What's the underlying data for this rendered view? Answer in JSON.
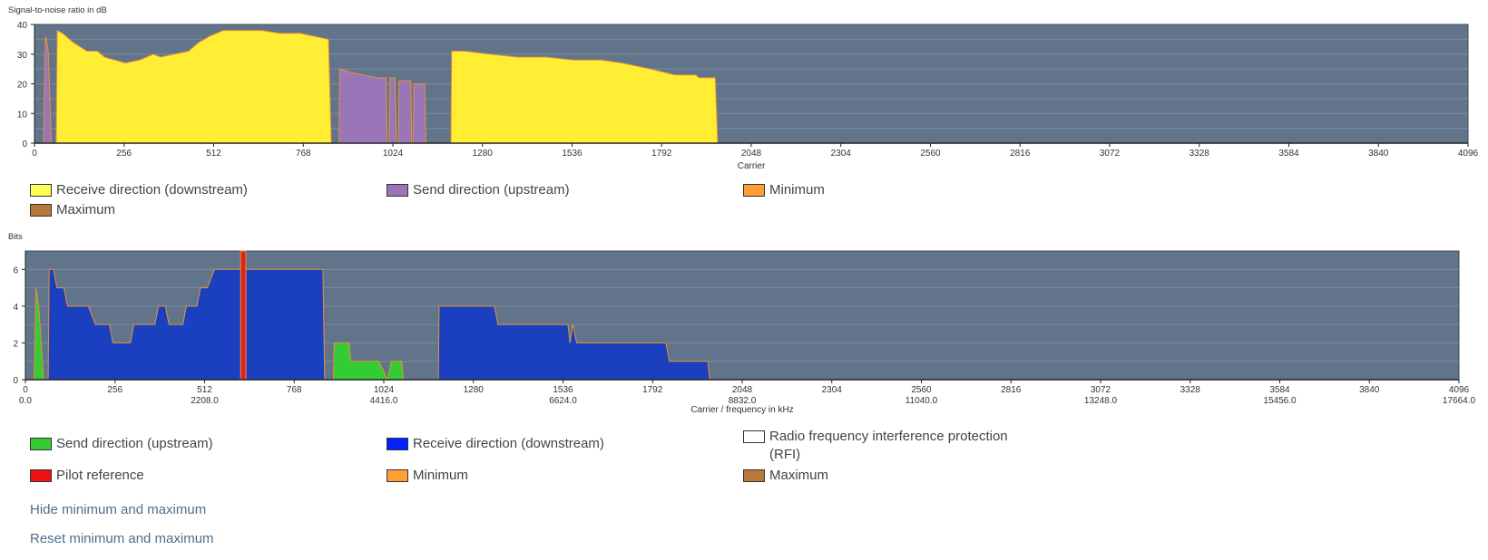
{
  "chart_data": [
    {
      "type": "area",
      "ylabel": "Signal-to-noise ratio in dB",
      "xlabel": "Carrier",
      "xlim": [
        0,
        4096
      ],
      "ylim": [
        0,
        40
      ],
      "x_ticks": [
        0,
        256,
        512,
        768,
        1024,
        1280,
        1536,
        1792,
        2048,
        2304,
        2560,
        2816,
        3072,
        3328,
        3584,
        3840,
        4096
      ],
      "y_ticks": [
        0,
        10,
        20,
        30,
        40
      ],
      "series": [
        {
          "name": "Receive direction (downstream)",
          "color": "#ffee33",
          "points": [
            [
              62,
              0
            ],
            [
              65,
              38
            ],
            [
              80,
              37
            ],
            [
              110,
              34
            ],
            [
              150,
              31
            ],
            [
              180,
              31
            ],
            [
              200,
              29
            ],
            [
              230,
              28
            ],
            [
              260,
              27
            ],
            [
              300,
              28
            ],
            [
              340,
              30
            ],
            [
              360,
              29
            ],
            [
              400,
              30
            ],
            [
              440,
              31
            ],
            [
              470,
              34
            ],
            [
              500,
              36
            ],
            [
              540,
              38
            ],
            [
              600,
              38
            ],
            [
              650,
              38
            ],
            [
              700,
              37
            ],
            [
              760,
              37
            ],
            [
              800,
              36
            ],
            [
              840,
              35
            ],
            [
              848,
              0
            ]
          ]
        },
        {
          "name": "Receive direction (downstream)",
          "color": "#ffee33",
          "points": [
            [
              1190,
              0
            ],
            [
              1192,
              31
            ],
            [
              1230,
              31
            ],
            [
              1300,
              30
            ],
            [
              1380,
              29
            ],
            [
              1460,
              29
            ],
            [
              1540,
              28
            ],
            [
              1620,
              28
            ],
            [
              1680,
              27
            ],
            [
              1760,
              25
            ],
            [
              1830,
              23
            ],
            [
              1890,
              23
            ],
            [
              1898,
              22
            ],
            [
              1945,
              22
            ],
            [
              1952,
              0
            ]
          ]
        },
        {
          "name": "Send direction (upstream)",
          "color": "#9a75b8",
          "points": [
            [
              26,
              0
            ],
            [
              31,
              36
            ],
            [
              35,
              35
            ],
            [
              40,
              30
            ],
            [
              48,
              0
            ]
          ]
        },
        {
          "name": "Send direction (upstream)",
          "color": "#9a75b8",
          "points": [
            [
              870,
              0
            ],
            [
              872,
              25
            ],
            [
              900,
              24
            ],
            [
              940,
              23
            ],
            [
              980,
              22
            ],
            [
              1005,
              22
            ],
            [
              1008,
              0
            ],
            [
              1014,
              0
            ],
            [
              1016,
              22
            ],
            [
              1030,
              22
            ],
            [
              1034,
              0
            ],
            [
              1040,
              0
            ],
            [
              1042,
              21
            ],
            [
              1075,
              21
            ],
            [
              1078,
              0
            ],
            [
              1082,
              0
            ],
            [
              1084,
              20
            ],
            [
              1115,
              20
            ],
            [
              1118,
              0
            ]
          ]
        }
      ]
    },
    {
      "type": "area",
      "ylabel": "Bits",
      "xlabel": "Carrier / frequency in kHz",
      "xlim": [
        0,
        4096
      ],
      "ylim": [
        0,
        7
      ],
      "x_ticks": [
        0,
        256,
        512,
        768,
        1024,
        1280,
        1536,
        1792,
        2048,
        2304,
        2560,
        2816,
        3072,
        3328,
        3584,
        3840,
        4096
      ],
      "freq_ticks": [
        {
          "carrier": 0,
          "label": "0.0"
        },
        {
          "carrier": 512,
          "label": "2208.0"
        },
        {
          "carrier": 1024,
          "label": "4416.0"
        },
        {
          "carrier": 1536,
          "label": "6624.0"
        },
        {
          "carrier": 2048,
          "label": "8832.0"
        },
        {
          "carrier": 2560,
          "label": "11040.0"
        },
        {
          "carrier": 3072,
          "label": "13248.0"
        },
        {
          "carrier": 3584,
          "label": "15456.0"
        },
        {
          "carrier": 4096,
          "label": "17664.0"
        }
      ],
      "y_ticks": [
        0,
        2,
        4,
        6
      ],
      "series": [
        {
          "name": "Send direction (upstream)",
          "color": "#33cc33",
          "points": [
            [
              25,
              0
            ],
            [
              30,
              5
            ],
            [
              38,
              4
            ],
            [
              45,
              2
            ],
            [
              52,
              0
            ]
          ]
        },
        {
          "name": "Send direction (upstream)",
          "color": "#33cc33",
          "points": [
            [
              880,
              0
            ],
            [
              882,
              2
            ],
            [
              925,
              2
            ],
            [
              930,
              1
            ],
            [
              1010,
              1
            ],
            [
              1035,
              0
            ],
            [
              1045,
              1
            ],
            [
              1075,
              1
            ],
            [
              1080,
              0
            ]
          ]
        },
        {
          "name": "Receive direction (downstream)",
          "color": "#1a3fbf",
          "points": [
            [
              65,
              0
            ],
            [
              68,
              6
            ],
            [
              80,
              6
            ],
            [
              90,
              5
            ],
            [
              110,
              5
            ],
            [
              120,
              4
            ],
            [
              180,
              4
            ],
            [
              200,
              3
            ],
            [
              240,
              3
            ],
            [
              250,
              2
            ],
            [
              300,
              2
            ],
            [
              310,
              3
            ],
            [
              370,
              3
            ],
            [
              380,
              4
            ],
            [
              400,
              4
            ],
            [
              410,
              3
            ],
            [
              450,
              3
            ],
            [
              460,
              4
            ],
            [
              490,
              4
            ],
            [
              500,
              5
            ],
            [
              520,
              5
            ],
            [
              540,
              6
            ],
            [
              610,
              6
            ],
            [
              625,
              6
            ],
            [
              635,
              6
            ],
            [
              650,
              6
            ],
            [
              770,
              6
            ],
            [
              800,
              6
            ],
            [
              850,
              6
            ],
            [
              855,
              0
            ]
          ]
        },
        {
          "name": "Receive direction (downstream)",
          "color": "#1a3fbf",
          "points": [
            [
              1180,
              0
            ],
            [
              1182,
              4
            ],
            [
              1340,
              4
            ],
            [
              1350,
              3
            ],
            [
              1550,
              3
            ],
            [
              1556,
              2
            ],
            [
              1564,
              3
            ],
            [
              1575,
              2
            ],
            [
              1830,
              2
            ],
            [
              1840,
              1
            ],
            [
              1950,
              1
            ],
            [
              1955,
              0
            ]
          ]
        },
        {
          "name": "Pilot reference",
          "color": "#dd2222",
          "points": [
            [
              615,
              0
            ],
            [
              615,
              7
            ],
            [
              630,
              7
            ],
            [
              630,
              0
            ]
          ]
        }
      ]
    }
  ],
  "legend1": [
    {
      "label": "Receive direction (downstream)",
      "color": "#ffff55"
    },
    {
      "label": "Send direction (upstream)",
      "color": "#9a75b8"
    },
    {
      "label": "Minimum",
      "color": "#ff9f33"
    },
    {
      "label": "Maximum",
      "color": "#b8783a"
    }
  ],
  "legend2": [
    {
      "label": "Send direction (upstream)",
      "color": "#33cc33"
    },
    {
      "label": "Receive direction (downstream)",
      "color": "#0022ff"
    },
    {
      "label": "Radio frequency interference protection (RFI)",
      "color": "#ffffff"
    },
    {
      "label": "Pilot reference",
      "color": "#ee1111"
    },
    {
      "label": "Minimum",
      "color": "#ff9f33"
    },
    {
      "label": "Maximum",
      "color": "#b8783a"
    }
  ],
  "links": {
    "hide": "Hide minimum and maximum",
    "reset": "Reset minimum and maximum"
  },
  "colors": {
    "plot_bg": "#627489",
    "grid": "#7a8ba0",
    "minmax_line": "#e8913a"
  }
}
